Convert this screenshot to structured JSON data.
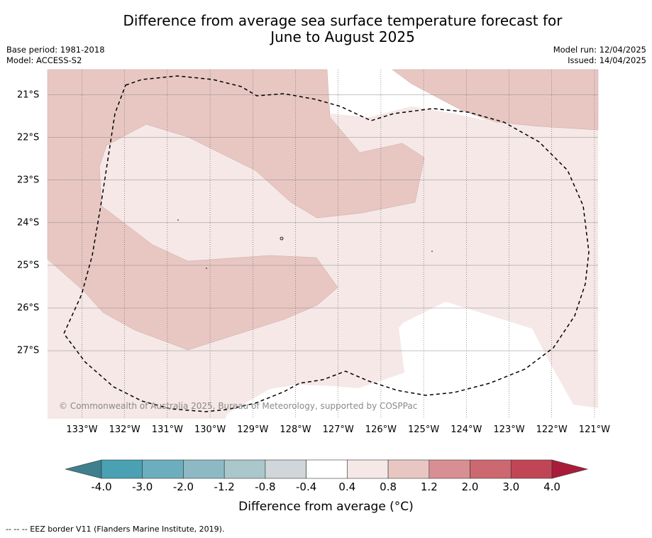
{
  "title_line1": "Difference from average sea surface temperature forecast for",
  "title_line2": "June to August 2025",
  "base_period": "Base period: 1981-2018",
  "model": "Model: ACCESS-S2",
  "model_run": "Model run: 12/04/2025",
  "issued": "Issued: 14/04/2025",
  "lon_labels": [
    "133°W",
    "132°W",
    "131°W",
    "130°W",
    "129°W",
    "128°W",
    "127°W",
    "126°W",
    "125°W",
    "124°W",
    "123°W",
    "122°W",
    "121°W"
  ],
  "lat_labels": [
    "21°S",
    "22°S",
    "23°S",
    "24°S",
    "25°S",
    "26°S",
    "27°S"
  ],
  "copyright": "© Commonwealth of Australia 2025, Bureau of Meteorology, supported by COSPPac",
  "colorbar": {
    "ticks": [
      "-4.0",
      "-3.0",
      "-2.0",
      "-1.2",
      "-0.8",
      "-0.4",
      "0.4",
      "0.8",
      "1.2",
      "2.0",
      "3.0",
      "4.0"
    ],
    "colors": [
      "#3f7f8e",
      "#4aa1b3",
      "#6caebd",
      "#8db9c5",
      "#aac8cc",
      "#d0d6d9",
      "#ffffff",
      "#f5e8e6",
      "#e8c7c3",
      "#d88f94",
      "#cc6870",
      "#c04656",
      "#a81c3a"
    ],
    "title": "Difference from average (°C)"
  },
  "legend_colors": {
    "light_pink": "#f5e8e6",
    "mid_pink": "#e8c7c3",
    "white": "#ffffff"
  },
  "footnote": "--  --  -- EEZ border V11 (Flanders Marine Institute, 2019)."
}
